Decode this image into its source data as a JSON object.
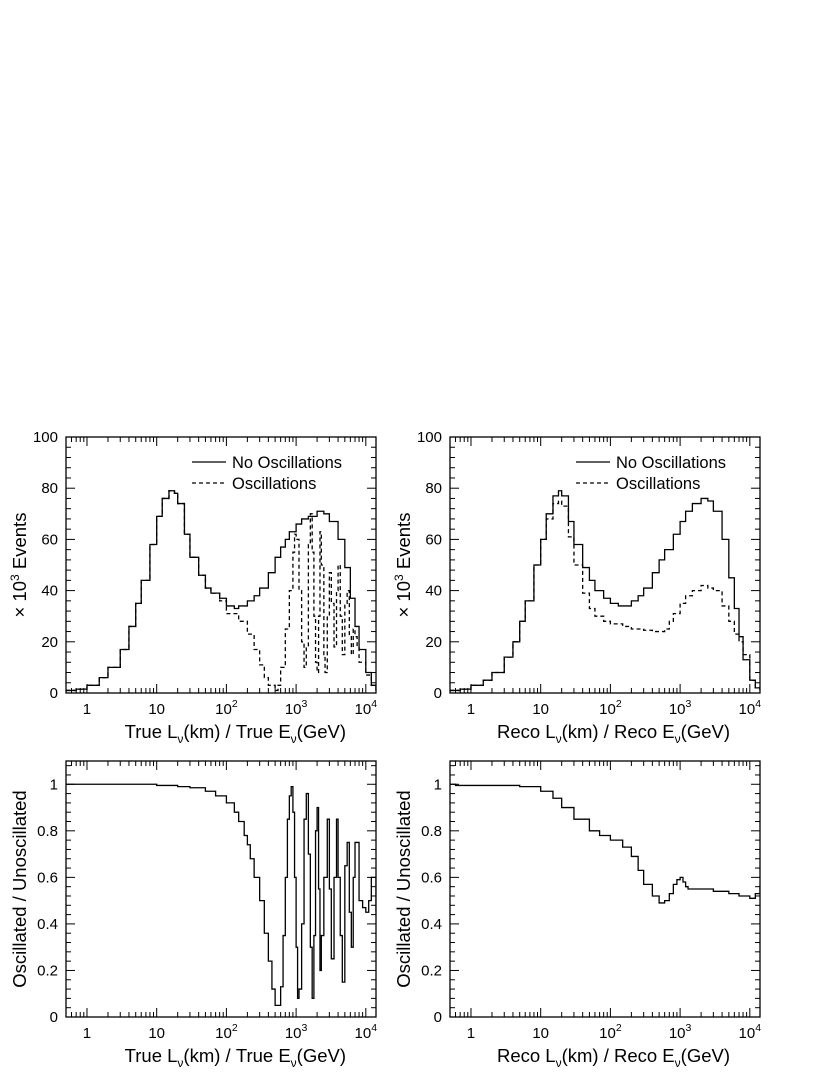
{
  "labels": {
    "x_true_parts": [
      "True L",
      "ν",
      "(km) / True E",
      "ν",
      "(GeV)"
    ],
    "x_reco_parts": [
      "Reco L",
      "ν",
      "(km) / Reco E",
      "ν",
      "(GeV)"
    ],
    "y_events_parts": [
      "× 10",
      "3",
      " Events"
    ],
    "y_ratio": "Oscillated / Unoscillated",
    "legend_no_osc": "No Oscillations",
    "legend_osc": "Oscillations"
  },
  "x_ticks": [
    {
      "v": 1,
      "base": "1",
      "exp": ""
    },
    {
      "v": 10,
      "base": "10",
      "exp": ""
    },
    {
      "v": 100,
      "base": "10",
      "exp": "2"
    },
    {
      "v": 1000,
      "base": "10",
      "exp": "3"
    },
    {
      "v": 10000,
      "base": "10",
      "exp": "4"
    }
  ],
  "chart_data": [
    {
      "id": "true-events",
      "type": "line",
      "xscale": "log",
      "xlim": [
        0.5,
        14000
      ],
      "ylim": [
        0,
        100
      ],
      "y_ticks": [
        0,
        20,
        40,
        60,
        80,
        100
      ],
      "xlabel_key": "x_true_parts",
      "ylabel_key": "y_events_parts",
      "legend": true,
      "series": [
        {
          "name": "No Oscillations",
          "style": "solid",
          "x": [
            0.5,
            0.7,
            1,
            1.5,
            2,
            3,
            4,
            5,
            6,
            8,
            10,
            12,
            15,
            18,
            20,
            25,
            30,
            40,
            50,
            60,
            80,
            100,
            130,
            150,
            200,
            250,
            300,
            400,
            500,
            600,
            700,
            800,
            1000,
            1200,
            1500,
            2000,
            2500,
            3000,
            4000,
            5000,
            6000,
            7000,
            8000,
            10000,
            12000,
            14000
          ],
          "y": [
            1,
            1.5,
            3,
            6,
            10,
            17,
            26,
            35,
            44,
            58,
            69,
            76,
            79,
            78,
            74,
            62,
            53,
            46,
            41,
            39,
            37,
            34,
            33,
            34,
            36,
            38,
            41,
            47,
            53,
            57,
            60,
            63,
            66,
            68,
            69,
            71,
            70,
            67,
            60,
            49,
            37,
            26,
            17,
            8,
            3,
            1
          ]
        },
        {
          "name": "Oscillations",
          "style": "dashed",
          "x": [
            0.5,
            0.7,
            1,
            1.5,
            2,
            3,
            4,
            5,
            6,
            8,
            10,
            12,
            15,
            18,
            20,
            25,
            30,
            40,
            50,
            60,
            80,
            100,
            150,
            200,
            250,
            300,
            350,
            400,
            500,
            550,
            600,
            700,
            800,
            900,
            950,
            1000,
            1100,
            1200,
            1300,
            1400,
            1500,
            1600,
            1700,
            1800,
            1900,
            2000,
            2100,
            2200,
            2300,
            2500,
            2600,
            2800,
            3000,
            3200,
            3500,
            3800,
            4000,
            4300,
            4600,
            5000,
            5400,
            5800,
            6200,
            6600,
            7000,
            7500,
            8000,
            10000,
            12000,
            14000
          ],
          "y": [
            1,
            1.5,
            3,
            6,
            10,
            17,
            26,
            35,
            44,
            58,
            69,
            76,
            79,
            78,
            74,
            62,
            53,
            46,
            41,
            39,
            36,
            31,
            28,
            23,
            17,
            11,
            6,
            3,
            1,
            3,
            10,
            25,
            40,
            55,
            62,
            60,
            40,
            20,
            10,
            18,
            58,
            70,
            55,
            30,
            12,
            8,
            30,
            63,
            50,
            15,
            8,
            30,
            47,
            35,
            18,
            40,
            50,
            30,
            15,
            35,
            40,
            22,
            15,
            25,
            22,
            18,
            12,
            7,
            3,
            1
          ]
        }
      ]
    },
    {
      "id": "reco-events",
      "type": "line",
      "xscale": "log",
      "xlim": [
        0.5,
        14000
      ],
      "ylim": [
        0,
        100
      ],
      "y_ticks": [
        0,
        20,
        40,
        60,
        80,
        100
      ],
      "xlabel_key": "x_reco_parts",
      "ylabel_key": "y_events_parts",
      "legend": true,
      "series": [
        {
          "name": "No Oscillations",
          "style": "solid",
          "x": [
            0.5,
            0.7,
            1,
            1.5,
            2,
            3,
            4,
            5,
            6,
            8,
            10,
            12,
            15,
            18,
            20,
            25,
            30,
            40,
            50,
            60,
            80,
            100,
            130,
            150,
            200,
            250,
            300,
            400,
            500,
            600,
            800,
            1000,
            1200,
            1500,
            2000,
            2500,
            3000,
            4000,
            5000,
            6000,
            7000,
            8000,
            10000,
            12000,
            14000
          ],
          "y": [
            1,
            1.5,
            3,
            5,
            8,
            14,
            20,
            28,
            36,
            50,
            60,
            70,
            77,
            79,
            77,
            67,
            58,
            49,
            44,
            40,
            37,
            35,
            34,
            34,
            36,
            38,
            41,
            47,
            52,
            56,
            62,
            67,
            71,
            74,
            76,
            75,
            71,
            60,
            45,
            33,
            22,
            13,
            5,
            2,
            1
          ]
        },
        {
          "name": "Oscillations",
          "style": "dashed",
          "x": [
            0.5,
            0.7,
            1,
            1.5,
            2,
            3,
            4,
            5,
            6,
            8,
            10,
            12,
            15,
            18,
            20,
            25,
            30,
            40,
            50,
            60,
            80,
            100,
            150,
            200,
            300,
            400,
            500,
            600,
            700,
            800,
            1000,
            1200,
            1500,
            2000,
            2500,
            3000,
            4000,
            5000,
            6000,
            7000,
            8000,
            10000,
            12000,
            14000
          ],
          "y": [
            1,
            1.5,
            3,
            5,
            8,
            14,
            20,
            28,
            36,
            50,
            60,
            68,
            74,
            75,
            73,
            61,
            50,
            39,
            33,
            30,
            28,
            27,
            26,
            25,
            24.5,
            24,
            24,
            25,
            28,
            31,
            35,
            38,
            40,
            42,
            41,
            40,
            34,
            28,
            23,
            20,
            15,
            5,
            2,
            1
          ]
        }
      ]
    },
    {
      "id": "true-ratio",
      "type": "line",
      "xscale": "log",
      "xlim": [
        0.5,
        14000
      ],
      "ylim": [
        0,
        1.1
      ],
      "y_ticks": [
        0,
        0.2,
        0.4,
        0.6,
        0.8,
        1
      ],
      "xlabel_key": "x_true_parts",
      "ylabel_key": "y_ratio",
      "legend": false,
      "series": [
        {
          "name": "",
          "style": "solid",
          "x": [
            0.5,
            1,
            5,
            10,
            20,
            30,
            50,
            70,
            100,
            130,
            150,
            180,
            200,
            220,
            250,
            300,
            350,
            400,
            450,
            500,
            550,
            600,
            650,
            700,
            750,
            800,
            850,
            900,
            950,
            1000,
            1050,
            1100,
            1200,
            1300,
            1400,
            1500,
            1600,
            1700,
            1800,
            1900,
            2000,
            2100,
            2200,
            2300,
            2500,
            2800,
            3000,
            3200,
            3500,
            3800,
            4000,
            4300,
            4600,
            5000,
            5400,
            5800,
            6200,
            6600,
            7000,
            8000,
            9000,
            10000,
            11000,
            12000,
            14000
          ],
          "y": [
            1,
            1,
            1,
            0.995,
            0.99,
            0.985,
            0.97,
            0.95,
            0.92,
            0.88,
            0.84,
            0.78,
            0.74,
            0.68,
            0.6,
            0.5,
            0.36,
            0.24,
            0.12,
            0.05,
            0.05,
            0.13,
            0.35,
            0.6,
            0.85,
            0.95,
            0.99,
            0.88,
            0.6,
            0.3,
            0.08,
            0.12,
            0.4,
            0.85,
            0.96,
            0.7,
            0.3,
            0.08,
            0.35,
            0.8,
            0.9,
            0.55,
            0.2,
            0.35,
            0.6,
            0.85,
            0.55,
            0.25,
            0.6,
            0.85,
            0.6,
            0.35,
            0.15,
            0.65,
            0.75,
            0.45,
            0.3,
            0.6,
            0.75,
            0.5,
            0.47,
            0.45,
            0.5,
            0.6,
            0.45
          ]
        }
      ]
    },
    {
      "id": "reco-ratio",
      "type": "line",
      "xscale": "log",
      "xlim": [
        0.5,
        14000
      ],
      "ylim": [
        0,
        1.1
      ],
      "y_ticks": [
        0,
        0.2,
        0.4,
        0.6,
        0.8,
        1
      ],
      "xlabel_key": "x_reco_parts",
      "ylabel_key": "y_ratio",
      "legend": false,
      "series": [
        {
          "name": "",
          "style": "solid",
          "x": [
            0.5,
            0.6,
            1,
            2,
            5,
            10,
            15,
            20,
            30,
            50,
            70,
            100,
            150,
            200,
            250,
            300,
            400,
            500,
            600,
            700,
            800,
            900,
            1000,
            1100,
            1200,
            1300,
            1500,
            2000,
            3000,
            5000,
            7000,
            10000,
            12000,
            14000
          ],
          "y": [
            1,
            0.995,
            0.995,
            0.995,
            0.99,
            0.97,
            0.94,
            0.9,
            0.85,
            0.8,
            0.78,
            0.76,
            0.73,
            0.69,
            0.63,
            0.57,
            0.52,
            0.49,
            0.5,
            0.53,
            0.57,
            0.59,
            0.6,
            0.58,
            0.56,
            0.55,
            0.55,
            0.55,
            0.54,
            0.53,
            0.52,
            0.51,
            0.53,
            0.56
          ]
        }
      ]
    }
  ]
}
